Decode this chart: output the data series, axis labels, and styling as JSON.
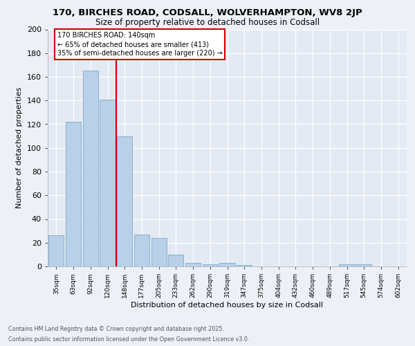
{
  "title1": "170, BIRCHES ROAD, CODSALL, WOLVERHAMPTON, WV8 2JP",
  "title2": "Size of property relative to detached houses in Codsall",
  "xlabel": "Distribution of detached houses by size in Codsall",
  "ylabel": "Number of detached properties",
  "categories": [
    "35sqm",
    "63sqm",
    "92sqm",
    "120sqm",
    "148sqm",
    "177sqm",
    "205sqm",
    "233sqm",
    "262sqm",
    "290sqm",
    "319sqm",
    "347sqm",
    "375sqm",
    "404sqm",
    "432sqm",
    "460sqm",
    "489sqm",
    "517sqm",
    "545sqm",
    "574sqm",
    "602sqm"
  ],
  "values": [
    26,
    122,
    165,
    141,
    110,
    27,
    24,
    10,
    3,
    2,
    3,
    1,
    0,
    0,
    0,
    0,
    0,
    2,
    2,
    0,
    0
  ],
  "bar_color": "#b8d0e8",
  "bar_edge_color": "#7aaac8",
  "vline_color": "#cc0000",
  "vline_index": 3.5,
  "annotation_line1": "170 BIRCHES ROAD: 140sqm",
  "annotation_line2": "← 65% of detached houses are smaller (413)",
  "annotation_line3": "35% of semi-detached houses are larger (220) →",
  "annotation_box_color": "white",
  "annotation_box_edge_color": "#cc0000",
  "ylim": [
    0,
    200
  ],
  "yticks": [
    0,
    20,
    40,
    60,
    80,
    100,
    120,
    140,
    160,
    180,
    200
  ],
  "footer1": "Contains HM Land Registry data © Crown copyright and database right 2025.",
  "footer2": "Contains public sector information licensed under the Open Government Licence v3.0.",
  "bg_color": "#edf1f7",
  "plot_bg_color": "#e4eaf4",
  "grid_color": "#ffffff"
}
